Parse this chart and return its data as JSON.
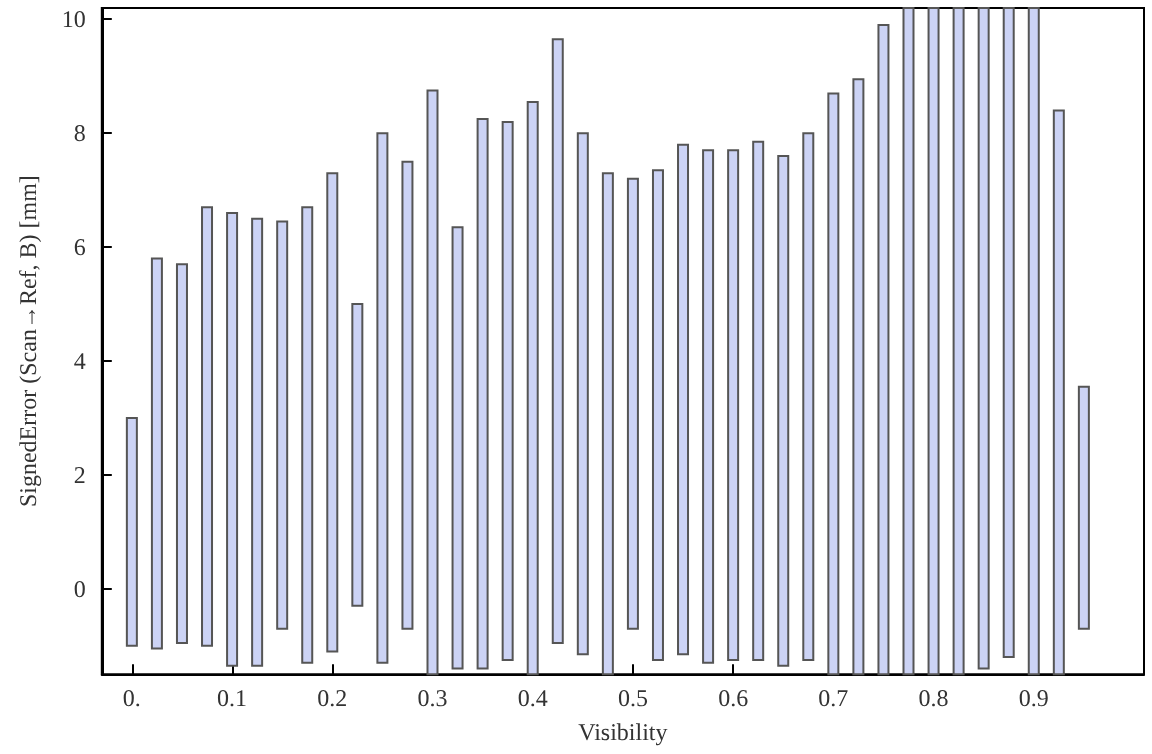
{
  "chart_data": {
    "type": "bar",
    "xlabel": "Visibility",
    "ylabel": "SignedError (Scan→Ref, B) [mm]",
    "x": [
      0,
      0.025,
      0.05,
      0.075,
      0.1,
      0.125,
      0.15,
      0.175,
      0.2,
      0.225,
      0.25,
      0.275,
      0.3,
      0.325,
      0.35,
      0.375,
      0.4,
      0.425,
      0.45,
      0.475,
      0.5,
      0.525,
      0.55,
      0.575,
      0.6,
      0.625,
      0.65,
      0.675,
      0.7,
      0.725,
      0.75,
      0.775,
      0.8,
      0.825,
      0.85,
      0.875,
      0.9,
      0.925,
      0.95
    ],
    "base": [
      -1.0,
      -1.05,
      -0.95,
      -1.0,
      -1.35,
      -1.35,
      -0.7,
      -1.3,
      -1.1,
      -0.3,
      -1.3,
      -0.7,
      -1.5,
      -1.4,
      -1.4,
      -1.25,
      -1.5,
      -0.95,
      -1.15,
      -1.5,
      -0.7,
      -1.25,
      -1.15,
      -1.3,
      -1.25,
      -1.25,
      -1.35,
      -1.25,
      -1.5,
      -1.5,
      -1.5,
      -1.5,
      -1.5,
      -1.5,
      -1.4,
      -1.2,
      -1.5,
      -1.5,
      -0.7
    ],
    "values": [
      4.0,
      6.85,
      6.65,
      7.7,
      7.95,
      7.85,
      7.15,
      8.0,
      8.4,
      5.3,
      9.3,
      8.2,
      10.25,
      7.75,
      9.65,
      9.45,
      10.05,
      10.6,
      9.15,
      8.8,
      7.9,
      8.6,
      8.95,
      9.0,
      8.95,
      9.1,
      8.95,
      9.25,
      10.2,
      10.45,
      11.4,
      11.7,
      11.7,
      11.7,
      11.6,
      11.4,
      11.7,
      9.9,
      4.25
    ],
    "color": "#ccd3f5",
    "xlim": [
      -0.03,
      1.01
    ],
    "xticks": [
      {
        "value": 0,
        "label": "0."
      },
      0.1,
      0.2,
      0.3,
      0.4,
      0.5,
      0.6,
      0.7,
      0.8,
      0.9
    ],
    "ylim": [
      -1.5,
      10.2
    ],
    "yticks": [
      0,
      2,
      4,
      6,
      8,
      10
    ]
  }
}
